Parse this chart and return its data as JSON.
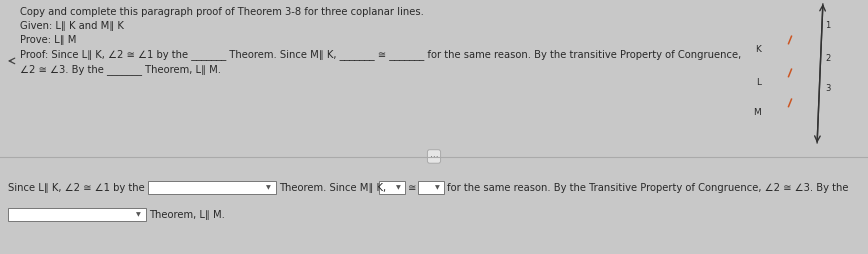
{
  "bg_top": "#f2f2f2",
  "bg_bottom": "#f2f2f2",
  "bg_divider": "#c8c8c8",
  "text_color": "#2a2a2a",
  "title": "Copy and complete this paragraph proof of Theorem 3-8 for three coplanar lines.",
  "given": "Given: L∥ K and M∥ K",
  "prove": "Prove: L∥ M",
  "proof_line1": "Proof: Since L∥ K, ∠2 ≅ ∠1 by the _______ Theorem. Since M∥ K, _______ ≅ _______ for the same reason. By the transitive Property of Congruence,",
  "proof_line2": "∠2 ≅ ∠3. By the _______ Theorem, L∥ M.",
  "bot_pre": "Since L∥ K, ∠2 ≅ ∠1 by the",
  "bot_mid": "Theorem. Since M∥ K,",
  "bot_congruence": "≅",
  "bot_end": "for the same reason. By the Transitive Property of Congruence, ∠2 ≅ ∠3. By the",
  "bot_line2": "Theorem, L∥ M.",
  "font_size": 7.2,
  "diagram_line_color": "#cc5522",
  "diagram_transversal_color": "#333333",
  "line_labels": [
    "K",
    "L",
    "M"
  ],
  "angle_labels": [
    "1",
    "2",
    "3"
  ]
}
